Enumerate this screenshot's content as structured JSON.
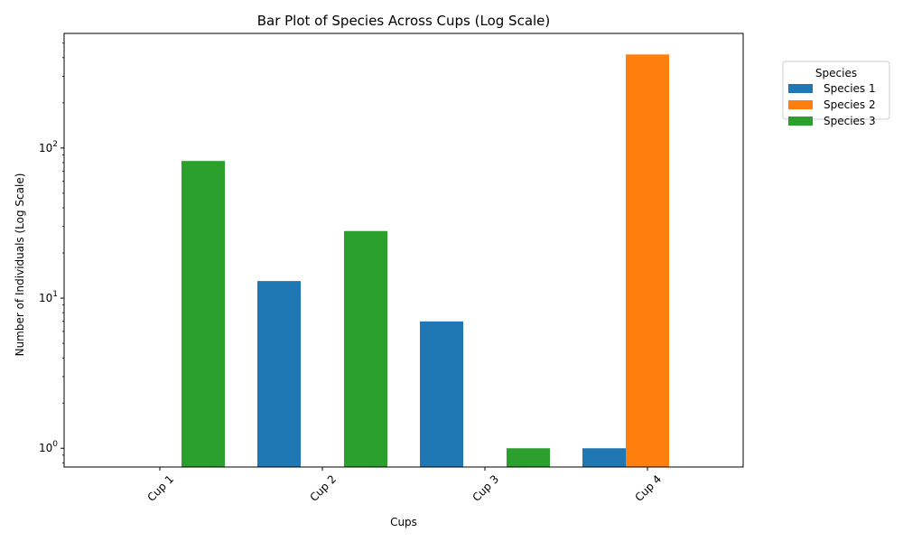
{
  "chart_data": {
    "type": "bar",
    "title": "Bar Plot of Species Across Cups (Log Scale)",
    "xlabel": "Cups",
    "ylabel": "Number of Individuals (Log Scale)",
    "yscale": "log",
    "ylim": [
      0.75,
      580
    ],
    "yticks": [
      {
        "value": 1,
        "base": "10",
        "exp": "0"
      },
      {
        "value": 10,
        "base": "10",
        "exp": "1"
      },
      {
        "value": 100,
        "base": "10",
        "exp": "2"
      }
    ],
    "categories": [
      "Cup 1",
      "Cup 2",
      "Cup 3",
      "Cup 4"
    ],
    "series": [
      {
        "name": "Species 1",
        "color": "#1f77b4",
        "values": [
          0,
          13,
          7,
          1
        ]
      },
      {
        "name": "Species 2",
        "color": "#ff7f0e",
        "values": [
          0,
          0,
          0,
          420
        ]
      },
      {
        "name": "Species 3",
        "color": "#2ca02c",
        "values": [
          82,
          28,
          1,
          0
        ]
      }
    ],
    "legend": {
      "title": "Species",
      "placement": "outside-top-right"
    },
    "grid": false
  }
}
